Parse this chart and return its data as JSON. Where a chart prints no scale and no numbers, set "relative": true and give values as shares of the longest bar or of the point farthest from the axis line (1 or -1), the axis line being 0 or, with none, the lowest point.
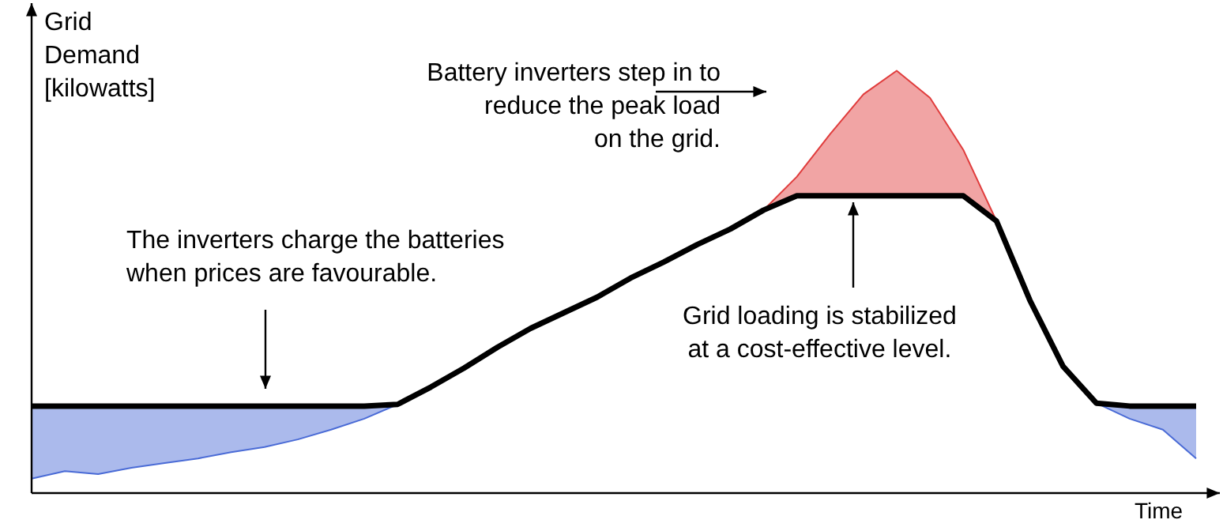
{
  "chart_data": {
    "type": "line",
    "relative": true,
    "xlabel": "Time",
    "ylabel": "Grid Demand [kilowatts]",
    "categories": [
      null,
      null,
      null,
      null,
      null,
      null,
      null,
      null,
      null,
      null,
      null,
      null,
      null,
      null,
      null,
      null,
      null,
      null,
      null,
      null,
      null,
      null,
      null,
      null,
      null,
      null,
      null,
      null,
      null,
      null,
      null,
      null,
      null,
      null,
      null,
      null
    ],
    "series": [
      {
        "color": "#000000",
        "values": [
          0.206,
          0.206,
          0.206,
          0.206,
          0.206,
          0.206,
          0.206,
          0.206,
          0.206,
          0.206,
          0.206,
          0.21,
          0.251,
          0.296,
          0.345,
          0.39,
          0.427,
          0.464,
          0.509,
          0.547,
          0.588,
          0.625,
          0.67,
          0.704,
          0.704,
          0.704,
          0.704,
          0.704,
          0.704,
          0.644,
          0.457,
          0.3,
          0.213,
          0.206,
          0.206,
          0.206
        ]
      },
      {
        "color": "#e03c3c",
        "values": [
          null,
          null,
          null,
          null,
          null,
          null,
          null,
          null,
          null,
          null,
          null,
          null,
          null,
          null,
          null,
          null,
          null,
          null,
          null,
          null,
          null,
          null,
          0.67,
          0.749,
          0.85,
          0.944,
          1,
          0.936,
          0.813,
          0.644,
          null,
          null,
          null,
          null,
          null,
          null
        ],
        "lower": [
          null,
          null,
          null,
          null,
          null,
          null,
          null,
          null,
          null,
          null,
          null,
          null,
          null,
          null,
          null,
          null,
          null,
          null,
          null,
          null,
          null,
          null,
          0.67,
          0.704,
          0.704,
          0.704,
          0.704,
          0.704,
          0.704,
          0.644,
          null,
          null,
          null,
          null,
          null,
          null
        ],
        "upper": [
          null,
          null,
          null,
          null,
          null,
          null,
          null,
          null,
          null,
          null,
          null,
          null,
          null,
          null,
          null,
          null,
          null,
          null,
          null,
          null,
          null,
          null,
          0.67,
          0.749,
          0.85,
          0.944,
          1,
          0.936,
          0.813,
          0.644,
          null,
          null,
          null,
          null,
          null,
          null
        ]
      },
      {
        "color": "#4a6bd6",
        "values": [
          0.034,
          0.052,
          0.045,
          0.06,
          0.071,
          0.082,
          0.097,
          0.109,
          0.127,
          0.15,
          0.176,
          0.21,
          null,
          null,
          null,
          null,
          null,
          null,
          null,
          null,
          null,
          null,
          null,
          null,
          null,
          null,
          null,
          null,
          null,
          null,
          null,
          null,
          0.213,
          0.176,
          0.15,
          0.082
        ],
        "lower": [
          0.034,
          0.052,
          0.045,
          0.06,
          0.071,
          0.082,
          0.097,
          0.109,
          0.127,
          0.15,
          0.176,
          0.21,
          null,
          null,
          null,
          null,
          null,
          null,
          null,
          null,
          null,
          null,
          null,
          null,
          null,
          null,
          null,
          null,
          null,
          null,
          null,
          null,
          0.213,
          0.176,
          0.15,
          0.082
        ],
        "upper": [
          0.206,
          0.206,
          0.206,
          0.206,
          0.206,
          0.206,
          0.206,
          0.206,
          0.206,
          0.206,
          0.206,
          0.21,
          null,
          null,
          null,
          null,
          null,
          null,
          null,
          null,
          null,
          null,
          null,
          null,
          null,
          null,
          null,
          null,
          null,
          null,
          null,
          null,
          0.213,
          0.206,
          0.206,
          0.206
        ]
      }
    ],
    "annotations": [
      "Battery inverters step in to\nreduce the peak load\non the grid.",
      "The inverters charge the batteries\nwhen prices are favourable.",
      "Grid loading is stabilized\nat a cost-effective level."
    ],
    "legend": false,
    "tick_labels": false
  }
}
